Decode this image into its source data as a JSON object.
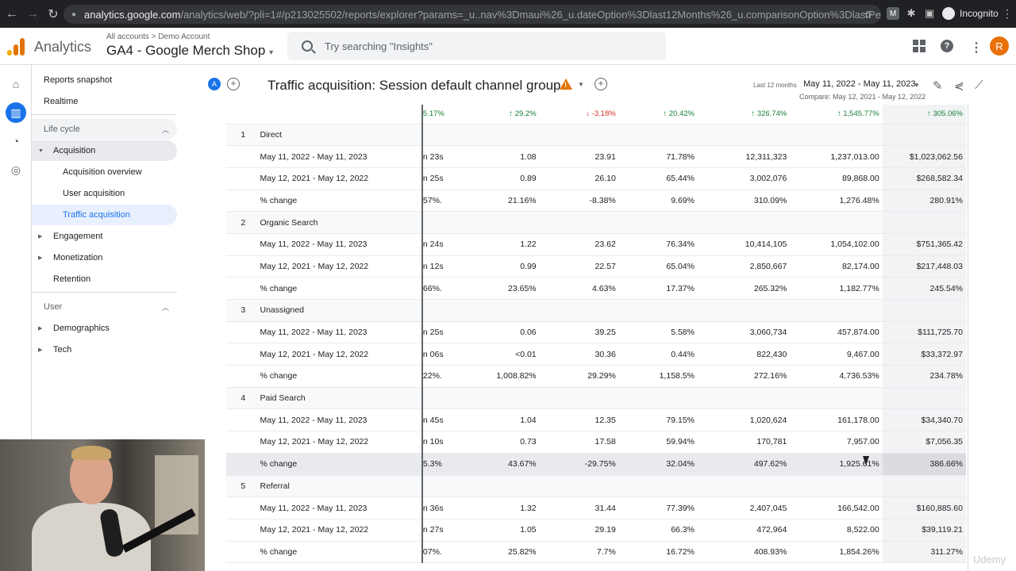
{
  "browser": {
    "host": "analytics.google.com",
    "path": "/analytics/web/?pli=1#/p213025502/reports/explorer?params=_u..nav%3Dmaui%26_u.dateOption%3Dlast12Months%26_u.comparisonOption%3DlastPeriodMdw&r=lifecycle-...",
    "incognito_label": "Incognito"
  },
  "header": {
    "app_name": "Analytics",
    "breadcrumb": "All accounts  >  Demo Account",
    "property": "GA4 - Google Merch Shop",
    "search_placeholder": "Try searching \"Insights\"",
    "avatar_letter": "R",
    "logo_colors": [
      "#f9ab00",
      "#e37400",
      "#e37400"
    ]
  },
  "sidebar": {
    "reports_snapshot": "Reports snapshot",
    "realtime": "Realtime",
    "life_cycle": "Life cycle",
    "acquisition": "Acquisition",
    "acquisition_overview": "Acquisition overview",
    "user_acquisition": "User acquisition",
    "traffic_acquisition": "Traffic acquisition",
    "engagement": "Engagement",
    "monetization": "Monetization",
    "retention": "Retention",
    "user": "User",
    "demographics": "Demographics",
    "tech": "Tech"
  },
  "report": {
    "compare_badge": "A",
    "title": "Traffic acquisition: Session default channel group",
    "date_label": "Last 12 months",
    "date_range": "May 11, 2022 - May 11, 2023",
    "compare": "Compare: May 12, 2021 - May 12, 2022"
  },
  "table": {
    "totals_change": [
      {
        "text": "5.17%",
        "dir": "none"
      },
      {
        "text": "29.2%",
        "dir": "up"
      },
      {
        "text": "-3.18%",
        "dir": "down"
      },
      {
        "text": "20.42%",
        "dir": "up"
      },
      {
        "text": "326.74%",
        "dir": "up"
      },
      {
        "text": "1,545.77%",
        "dir": "up"
      },
      {
        "text": "305.06%",
        "dir": "up"
      }
    ],
    "channels": [
      {
        "index": "1",
        "name": "Direct",
        "rows": [
          {
            "label": "May 11, 2022 - May 11, 2023",
            "vals": [
              "n 23s",
              "1.08",
              "23.91",
              "71.78%",
              "12,311,323",
              "1,237,013.00",
              "$1,023,062.56"
            ]
          },
          {
            "label": "May 12, 2021 - May 12, 2022",
            "vals": [
              "n 25s",
              "0.89",
              "26.10",
              "65.44%",
              "3,002,076",
              "89,868.00",
              "$268,582.34"
            ]
          },
          {
            "label": "% change",
            "vals": [
              ".57%",
              "21.16%",
              "-8.38%",
              "9.69%",
              "310.09%",
              "1,276.48%",
              "280.91%"
            ]
          }
        ]
      },
      {
        "index": "2",
        "name": "Organic Search",
        "rows": [
          {
            "label": "May 11, 2022 - May 11, 2023",
            "vals": [
              "n 24s",
              "1.22",
              "23.62",
              "76.34%",
              "10,414,105",
              "1,054,102.00",
              "$751,365.42"
            ]
          },
          {
            "label": "May 12, 2021 - May 12, 2022",
            "vals": [
              "n 12s",
              "0.99",
              "22.57",
              "65.04%",
              "2,850,667",
              "82,174.00",
              "$217,448.03"
            ]
          },
          {
            "label": "% change",
            "vals": [
              ".66%",
              "23.65%",
              "4.63%",
              "17.37%",
              "265.32%",
              "1,182.77%",
              "245.54%"
            ]
          }
        ]
      },
      {
        "index": "3",
        "name": "Unassigned",
        "rows": [
          {
            "label": "May 11, 2022 - May 11, 2023",
            "vals": [
              "n 25s",
              "0.06",
              "39.25",
              "5.58%",
              "3,060,734",
              "457,874.00",
              "$111,725.70"
            ]
          },
          {
            "label": "May 12, 2021 - May 12, 2022",
            "vals": [
              "n 06s",
              "<0.01",
              "30.36",
              "0.44%",
              "822,430",
              "9,467.00",
              "$33,372.97"
            ]
          },
          {
            "label": "% change",
            "vals": [
              ".22%",
              "1,008.82%",
              "29.29%",
              "1,158.5%",
              "272.16%",
              "4,736.53%",
              "234.78%"
            ]
          }
        ]
      },
      {
        "index": "4",
        "name": "Paid Search",
        "rows": [
          {
            "label": "May 11, 2022 - May 11, 2023",
            "vals": [
              "n 45s",
              "1.04",
              "12.35",
              "79.15%",
              "1,020,624",
              "161,178.00",
              "$34,340.70"
            ]
          },
          {
            "label": "May 12, 2021 - May 12, 2022",
            "vals": [
              "n 10s",
              "0.73",
              "17.58",
              "59.94%",
              "170,781",
              "7,957.00",
              "$7,056.35"
            ]
          },
          {
            "label": "% change",
            "vals": [
              "5.3%",
              "43.67%",
              "-29.75%",
              "32.04%",
              "497.62%",
              "1,925.61%",
              "386.66%"
            ]
          }
        ]
      },
      {
        "index": "5",
        "name": "Referral",
        "rows": [
          {
            "label": "May 11, 2022 - May 11, 2023",
            "vals": [
              "n 36s",
              "1.32",
              "31.44",
              "77.39%",
              "2,407,045",
              "166,542.00",
              "$160,885.60"
            ]
          },
          {
            "label": "May 12, 2021 - May 12, 2022",
            "vals": [
              "n 27s",
              "1.05",
              "29.19",
              "66.3%",
              "472,964",
              "8,522.00",
              "$39,119.21"
            ]
          },
          {
            "label": "% change",
            "vals": [
              ".07%",
              "25.82%",
              "7.7%",
              "16.72%",
              "408.93%",
              "1,854.26%",
              "311.27%"
            ]
          }
        ]
      }
    ],
    "hover_row": "3-2"
  },
  "watermark": "Udemy"
}
